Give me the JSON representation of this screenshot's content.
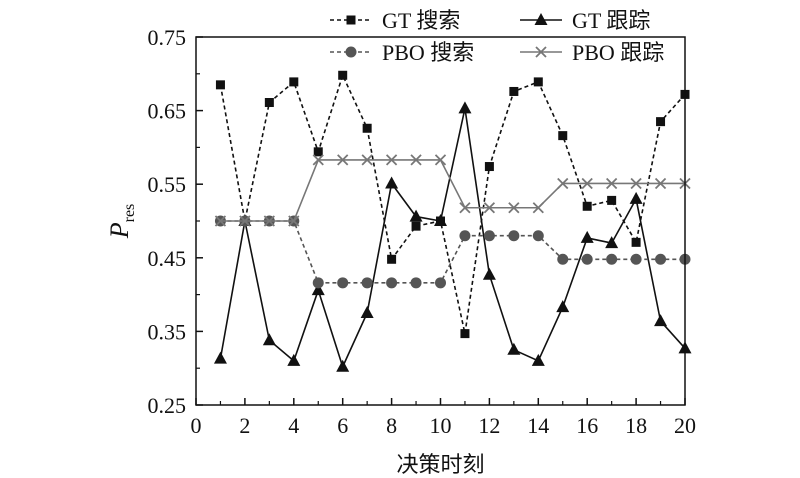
{
  "chart_data": {
    "type": "line",
    "xlabel": "决策时刻",
    "ylabel": "P",
    "ylabel_sub": "res",
    "xlim": [
      0,
      20
    ],
    "ylim": [
      0.25,
      0.75
    ],
    "xticks": [
      "0",
      "2",
      "4",
      "6",
      "8",
      "10",
      "12",
      "14",
      "16",
      "18",
      "20"
    ],
    "yticks": [
      "0.25",
      "0.35",
      "0.45",
      "0.55",
      "0.65",
      "0.75"
    ],
    "grid": false,
    "legend_position": "top",
    "x": [
      1,
      2,
      3,
      4,
      5,
      6,
      7,
      8,
      9,
      10,
      11,
      12,
      13,
      14,
      15,
      16,
      17,
      18,
      19,
      20
    ],
    "series": [
      {
        "name": "GT 搜索",
        "marker": "square",
        "line": "dashed",
        "color": "#111111",
        "values": [
          0.685,
          0.5,
          0.661,
          0.689,
          0.594,
          0.698,
          0.626,
          0.448,
          0.493,
          0.5,
          0.347,
          0.574,
          0.676,
          0.689,
          0.616,
          0.52,
          0.528,
          0.471,
          0.635,
          0.672
        ]
      },
      {
        "name": "GT 跟踪",
        "marker": "triangle",
        "line": "solid",
        "color": "#111111",
        "values": [
          0.313,
          0.5,
          0.338,
          0.31,
          0.406,
          0.302,
          0.375,
          0.551,
          0.506,
          0.5,
          0.653,
          0.427,
          0.325,
          0.31,
          0.383,
          0.477,
          0.47,
          0.53,
          0.364,
          0.327
        ]
      },
      {
        "name": "PBO 搜索",
        "marker": "circle",
        "line": "dashed",
        "color": "#555555",
        "values": [
          0.5,
          0.5,
          0.5,
          0.5,
          0.416,
          0.416,
          0.416,
          0.416,
          0.416,
          0.416,
          0.48,
          0.48,
          0.48,
          0.48,
          0.448,
          0.448,
          0.448,
          0.448,
          0.448,
          0.448
        ]
      },
      {
        "name": "PBO 跟踪",
        "marker": "x",
        "line": "solid",
        "color": "#777777",
        "values": [
          0.5,
          0.5,
          0.5,
          0.5,
          0.583,
          0.583,
          0.583,
          0.583,
          0.583,
          0.583,
          0.518,
          0.518,
          0.518,
          0.518,
          0.551,
          0.551,
          0.551,
          0.551,
          0.551,
          0.551
        ]
      }
    ]
  }
}
